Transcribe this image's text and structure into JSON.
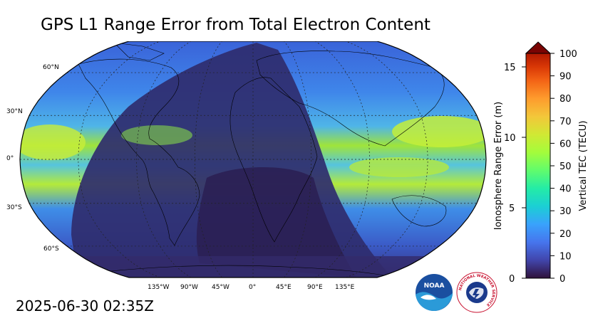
{
  "title": "GPS L1 Range Error from Total Electron Content",
  "timestamp": "2025-06-30 02:35Z",
  "map": {
    "projection": "robinson",
    "lat_labels": [
      "60°N",
      "30°N",
      "0°",
      "30°S",
      "60°S"
    ],
    "lon_labels": [
      "135°W",
      "90°W",
      "45°W",
      "0°",
      "45°E",
      "90°E",
      "135°E"
    ],
    "colors": {
      "ocean_base": "#3f78e6",
      "high_tec": "#a8e83c",
      "low_tec": "#2e2560",
      "night_shade": "#1f2450"
    }
  },
  "colorbar": {
    "left_axis_title": "Ionosphere Range Error (m)",
    "right_axis_title": "Vertical TEC (TECU)",
    "left_ticks": [
      "0",
      "5",
      "10",
      "15"
    ],
    "right_ticks": [
      "0",
      "10",
      "20",
      "30",
      "40",
      "50",
      "60",
      "70",
      "80",
      "90",
      "100"
    ],
    "extend": "max",
    "colormap": "turbo"
  },
  "logos": {
    "noaa": "NOAA",
    "nws": "NATIONAL WEATHER SERVICE"
  }
}
